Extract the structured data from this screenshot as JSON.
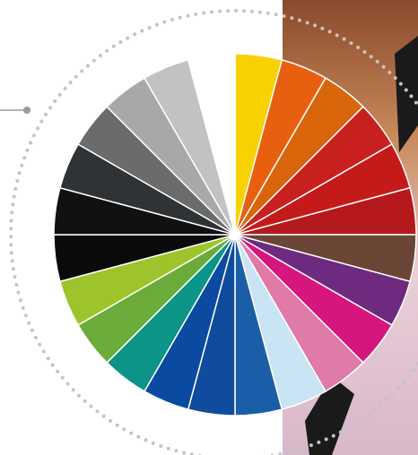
{
  "wheel": {
    "segments": [
      {
        "color": "#f7d200"
      },
      {
        "color": "#e8600f"
      },
      {
        "color": "#d9660a"
      },
      {
        "color": "#c8201e"
      },
      {
        "color": "#c51a1a"
      },
      {
        "color": "#b5191b"
      },
      {
        "color": "#6b4636"
      },
      {
        "color": "#6e2a7e"
      },
      {
        "color": "#d6157e"
      },
      {
        "color": "#e07aa8"
      },
      {
        "color": "#c9e4f5"
      },
      {
        "color": "#1a5ea8"
      },
      {
        "color": "#0f4c9e"
      },
      {
        "color": "#0a4aa0"
      },
      {
        "color": "#0c9488"
      },
      {
        "color": "#6aab3a"
      },
      {
        "color": "#9dc42a"
      },
      {
        "color": "#0a0a0a"
      },
      {
        "color": "#111111"
      },
      {
        "color": "#2f3335"
      },
      {
        "color": "#6b6b6b"
      },
      {
        "color": "#a8a8a8"
      },
      {
        "color": "#c0c2c4"
      },
      {
        "color": "#ffffff"
      }
    ]
  }
}
